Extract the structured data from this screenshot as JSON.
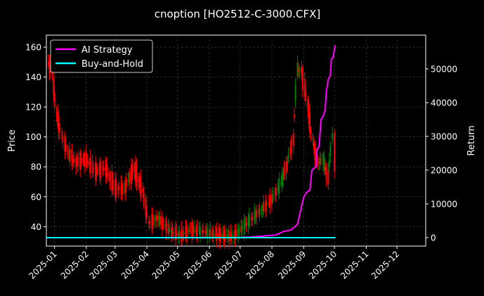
{
  "chart_data": {
    "type": "candlestick+line",
    "title": "cnoption [HO2512-C-3000.CFX]",
    "xlabel": "",
    "ylabel_left": "Price",
    "ylabel_right": "Return",
    "x_ticks": [
      "2025-01",
      "2025-02",
      "2025-03",
      "2025-04",
      "2025-05",
      "2025-06",
      "2025-07",
      "2025-08",
      "2025-09",
      "2025-10",
      "2025-11",
      "2025-12"
    ],
    "x_range": [
      "2024-12-24",
      "2025-12-29"
    ],
    "y_left_ticks": [
      40,
      60,
      80,
      100,
      120,
      140,
      160
    ],
    "y_left_range": [
      27,
      168
    ],
    "y_right_ticks": [
      0,
      10000,
      20000,
      30000,
      40000,
      50000
    ],
    "y_right_range": [
      -2500,
      60000
    ],
    "grid": true,
    "legend_position": "top-left",
    "colors": {
      "background": "#000000",
      "up_candle": "#008000",
      "down_candle": "#ff0000",
      "ai_strategy": "#ff00ff",
      "buy_and_hold": "#00ffff",
      "grid": "#444444"
    },
    "series": [
      {
        "name": "AI Strategy",
        "axis": "right",
        "points": [
          [
            "2024-12-24",
            0
          ],
          [
            "2025-06-25",
            0
          ],
          [
            "2025-07-10",
            150
          ],
          [
            "2025-07-25",
            500
          ],
          [
            "2025-08-05",
            800
          ],
          [
            "2025-08-12",
            1800
          ],
          [
            "2025-08-20",
            2300
          ],
          [
            "2025-08-26",
            4000
          ],
          [
            "2025-08-29",
            8000
          ],
          [
            "2025-09-01",
            12000
          ],
          [
            "2025-09-04",
            13500
          ],
          [
            "2025-09-07",
            14000
          ],
          [
            "2025-09-09",
            20000
          ],
          [
            "2025-09-13",
            21000
          ],
          [
            "2025-09-14",
            26000
          ],
          [
            "2025-09-16",
            27000
          ],
          [
            "2025-09-18",
            35000
          ],
          [
            "2025-09-20",
            36000
          ],
          [
            "2025-09-22",
            38000
          ],
          [
            "2025-09-23",
            43000
          ],
          [
            "2025-09-25",
            47000
          ],
          [
            "2025-09-27",
            48000
          ],
          [
            "2025-09-28",
            53000
          ],
          [
            "2025-09-30",
            53500
          ],
          [
            "2025-10-01",
            56000
          ],
          [
            "2025-10-02",
            57000
          ]
        ]
      },
      {
        "name": "Buy-and-Hold",
        "axis": "right",
        "points": [
          [
            "2024-12-24",
            0
          ],
          [
            "2025-10-02",
            0
          ]
        ]
      }
    ],
    "candles_ohlc_sample": [
      [
        "2024-12-26",
        150,
        160,
        145,
        148
      ],
      [
        "2024-12-30",
        145,
        150,
        136,
        140
      ],
      [
        "2025-01-03",
        120,
        125,
        110,
        112
      ],
      [
        "2025-01-08",
        104,
        106,
        96,
        98
      ],
      [
        "2025-01-14",
        92,
        96,
        84,
        88
      ],
      [
        "2025-01-22",
        86,
        92,
        76,
        80
      ],
      [
        "2025-02-01",
        88,
        92,
        80,
        82
      ],
      [
        "2025-02-10",
        80,
        84,
        72,
        74
      ],
      [
        "2025-02-20",
        82,
        86,
        74,
        76
      ],
      [
        "2025-03-01",
        70,
        74,
        60,
        62
      ],
      [
        "2025-03-10",
        66,
        72,
        58,
        64
      ],
      [
        "2025-03-20",
        84,
        88,
        72,
        74
      ],
      [
        "2025-03-28",
        68,
        72,
        58,
        60
      ],
      [
        "2025-04-03",
        45,
        52,
        38,
        40
      ],
      [
        "2025-04-12",
        48,
        52,
        42,
        44
      ],
      [
        "2025-04-25",
        38,
        42,
        33,
        35
      ],
      [
        "2025-05-05",
        36,
        40,
        31,
        33
      ],
      [
        "2025-05-15",
        40,
        44,
        34,
        36
      ],
      [
        "2025-05-28",
        35,
        42,
        30,
        38
      ],
      [
        "2025-06-10",
        36,
        40,
        31,
        33
      ],
      [
        "2025-06-25",
        35,
        40,
        30,
        32
      ],
      [
        "2025-07-05",
        38,
        44,
        34,
        42
      ],
      [
        "2025-07-15",
        46,
        52,
        42,
        48
      ],
      [
        "2025-07-22",
        52,
        60,
        46,
        50
      ],
      [
        "2025-08-01",
        60,
        72,
        54,
        56
      ],
      [
        "2025-08-10",
        66,
        76,
        58,
        72
      ],
      [
        "2025-08-15",
        80,
        90,
        74,
        78
      ],
      [
        "2025-08-22",
        100,
        112,
        94,
        96
      ],
      [
        "2025-08-26",
        140,
        160,
        130,
        150
      ],
      [
        "2025-08-30",
        148,
        160,
        136,
        140
      ],
      [
        "2025-09-05",
        128,
        140,
        110,
        115
      ],
      [
        "2025-09-10",
        100,
        108,
        90,
        95
      ],
      [
        "2025-09-15",
        85,
        95,
        78,
        80
      ],
      [
        "2025-09-20",
        82,
        90,
        74,
        88
      ],
      [
        "2025-09-25",
        76,
        84,
        68,
        70
      ],
      [
        "2025-09-29",
        95,
        112,
        85,
        105
      ],
      [
        "2025-10-01",
        100,
        110,
        76,
        80
      ]
    ]
  }
}
